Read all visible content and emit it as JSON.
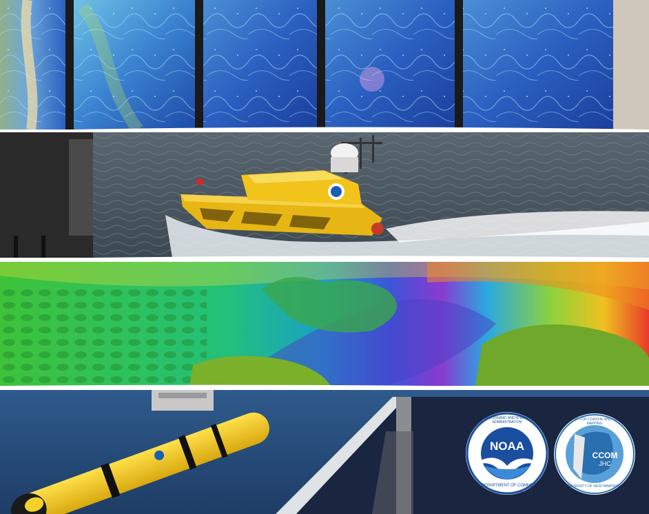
{
  "panels": {
    "top": {
      "icon": "ocean-current-display-screens"
    },
    "second": {
      "icon": "autonomous-surface-vessel"
    },
    "third": {
      "icon": "seafloor-bathymetry-map"
    },
    "bottom": {
      "icon": "underwater-glider"
    }
  },
  "logos": {
    "noaa": {
      "badge": "NOAA",
      "ring_text_top": "NATIONAL OCEANIC AND ATMOSPHERIC ADMINISTRATION",
      "ring_text_bottom": "U.S. DEPARTMENT OF COMMERCE"
    },
    "ccom": {
      "ring_text_top": "CENTER FOR COASTAL AND OCEAN MAPPING",
      "ring_text_bottom": "UNIVERSITY OF NEW HAMPSHIRE",
      "line1": "CCOM",
      "line2": "JHC"
    }
  },
  "colors": {
    "noaa_blue": "#1a4fa0",
    "ccom_blue": "#2a6fb0",
    "vessel_yellow": "#f2c31a"
  }
}
